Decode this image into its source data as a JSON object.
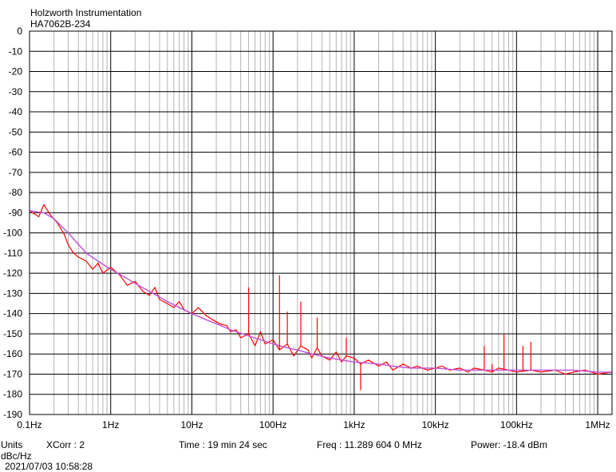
{
  "header": {
    "title": "Holzworth Instrumentation",
    "subtitle": "HA7062B-234"
  },
  "footer": {
    "units_label": "Units",
    "units_value": "dBc/Hz",
    "xcorr": "XCorr : 2",
    "time": "Time : 19 min 24 sec",
    "freq": "Freq : 11.289 604 0 MHz",
    "power": "Power: -18.4 dBm",
    "timestamp": "2021/07/03 10:58:28"
  },
  "colors": {
    "raw_trace": "#ff0000",
    "smoothed_trace": "#c050d8",
    "grid_major": "#000000",
    "grid_minor": "#b4b4b4"
  },
  "chart_data": {
    "type": "line",
    "title": "",
    "xlabel": "",
    "ylabel": "dBc/Hz",
    "x_scale": "log",
    "xlim": [
      0.1,
      1500000
    ],
    "ylim": [
      -190,
      0
    ],
    "grid": true,
    "legend": "none",
    "x_ticks": [
      {
        "value": 0.1,
        "label": "0.1Hz"
      },
      {
        "value": 1,
        "label": "1Hz"
      },
      {
        "value": 10,
        "label": "10Hz"
      },
      {
        "value": 100,
        "label": "100Hz"
      },
      {
        "value": 1000,
        "label": "1kHz"
      },
      {
        "value": 10000,
        "label": "10kHz"
      },
      {
        "value": 100000,
        "label": "100kHz"
      },
      {
        "value": 1000000,
        "label": "1MHz"
      }
    ],
    "y_ticks": [
      0,
      -10,
      -20,
      -30,
      -40,
      -50,
      -60,
      -70,
      -80,
      -90,
      -100,
      -110,
      -120,
      -130,
      -140,
      -150,
      -160,
      -170,
      -180,
      -190
    ],
    "series": [
      {
        "key": "raw",
        "x": [
          0.1,
          0.13,
          0.15,
          0.18,
          0.22,
          0.27,
          0.3,
          0.35,
          0.4,
          0.5,
          0.6,
          0.7,
          0.8,
          1,
          1.3,
          1.6,
          2,
          2.5,
          3,
          3.5,
          4,
          5,
          6,
          7,
          8,
          10,
          12,
          15,
          18,
          22,
          27,
          30,
          35,
          40,
          50,
          60,
          70,
          80,
          100,
          120,
          150,
          180,
          220,
          270,
          300,
          350,
          400,
          500,
          600,
          700,
          800,
          1000,
          1200,
          1500,
          2000,
          2500,
          3000,
          4000,
          5000,
          6000,
          8000,
          10000,
          12000,
          15000,
          20000,
          25000,
          30000,
          40000,
          50000,
          60000,
          80000,
          100000,
          150000,
          200000,
          300000,
          400000,
          500000,
          700000,
          1000000,
          1500000
        ],
        "y": [
          -89,
          -92,
          -86,
          -91,
          -95,
          -101,
          -106,
          -110,
          -112,
          -114,
          -118,
          -115,
          -120,
          -117,
          -121,
          -126,
          -124,
          -129,
          -131,
          -127,
          -133,
          -135,
          -137,
          -134,
          -138,
          -140,
          -137,
          -141,
          -143,
          -145,
          -146,
          -149,
          -148,
          -152,
          -150,
          -156,
          -149,
          -155,
          -153,
          -158,
          -155,
          -161,
          -156,
          -158,
          -162,
          -157,
          -161,
          -163,
          -159,
          -164,
          -161,
          -162,
          -165,
          -163,
          -166,
          -164,
          -168,
          -165,
          -167,
          -166,
          -168,
          -167,
          -166,
          -168,
          -167,
          -169,
          -167,
          -168,
          -169,
          -167,
          -168,
          -169,
          -168,
          -169,
          -168,
          -170,
          -169,
          -168,
          -170,
          -169
        ]
      },
      {
        "key": "smoothed",
        "x": [
          0.1,
          0.15,
          0.2,
          0.3,
          0.5,
          0.7,
          1,
          1.5,
          2,
          3,
          5,
          7,
          10,
          15,
          20,
          30,
          50,
          70,
          100,
          150,
          200,
          300,
          500,
          700,
          1000,
          2000,
          3000,
          5000,
          10000,
          20000,
          50000,
          100000,
          200000,
          500000,
          1000000,
          1500000
        ],
        "y": [
          -89,
          -90,
          -93,
          -100,
          -110,
          -114,
          -118,
          -122,
          -125,
          -129,
          -134,
          -137,
          -140,
          -143,
          -145,
          -148,
          -151,
          -153,
          -155,
          -157,
          -158,
          -160,
          -162,
          -163,
          -164,
          -165,
          -166,
          -167,
          -167,
          -168,
          -168,
          -168,
          -168,
          -168,
          -169,
          -169
        ]
      }
    ],
    "spurs": [
      {
        "x": 50,
        "y": -127
      },
      {
        "x": 120,
        "y": -121
      },
      {
        "x": 150,
        "y": -139
      },
      {
        "x": 220,
        "y": -134
      },
      {
        "x": 350,
        "y": -142
      },
      {
        "x": 800,
        "y": -152
      },
      {
        "x": 1200,
        "y": -178
      },
      {
        "x": 40000,
        "y": -156
      },
      {
        "x": 50000,
        "y": -165
      },
      {
        "x": 70000,
        "y": -150
      },
      {
        "x": 120000,
        "y": -156
      },
      {
        "x": 150000,
        "y": -154
      }
    ]
  }
}
